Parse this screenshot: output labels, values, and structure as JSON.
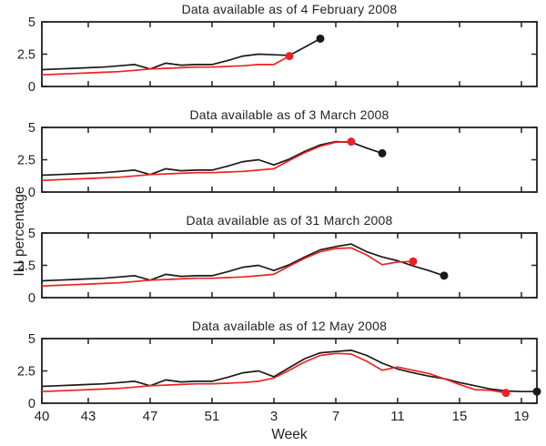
{
  "figure": {
    "ylabel": "ILI percentage",
    "xlabel": "Week",
    "colors": {
      "black_series": "#1d1819",
      "red_series": "#ed2124",
      "axis": "#231f20",
      "text": "#262223"
    },
    "ylim": [
      0,
      5
    ],
    "yticks": {
      "values": [
        0,
        2.5,
        5
      ],
      "labels": [
        "0",
        "2.5",
        "5"
      ]
    },
    "weeks": [
      "40",
      "41",
      "42",
      "43",
      "44",
      "45",
      "46",
      "47",
      "48",
      "49",
      "50",
      "51",
      "52",
      "1",
      "2",
      "3",
      "4",
      "5",
      "6",
      "7",
      "8",
      "9",
      "10",
      "11",
      "12",
      "13",
      "14",
      "15",
      "16",
      "17",
      "18",
      "19",
      "20"
    ],
    "x_ticks": {
      "indices": [
        0,
        3,
        7,
        11,
        15,
        19,
        23,
        27,
        31
      ],
      "labels": [
        "40",
        "43",
        "47",
        "51",
        "3",
        "7",
        "11",
        "15",
        "19"
      ]
    }
  },
  "chart_data": [
    {
      "type": "line",
      "title": "Data available as of 4 February 2008",
      "ylim": [
        0,
        5
      ],
      "series": [
        {
          "name": "black",
          "color": "#1d1819",
          "end_marker": true,
          "values": [
            1.3,
            1.35,
            1.4,
            1.45,
            1.5,
            1.6,
            1.7,
            1.35,
            1.8,
            1.65,
            1.7,
            1.7,
            2.0,
            2.35,
            2.5,
            2.45,
            2.4,
            3.05,
            3.7
          ]
        },
        {
          "name": "red",
          "color": "#ed2124",
          "end_marker": true,
          "values": [
            0.9,
            0.95,
            1.0,
            1.05,
            1.1,
            1.15,
            1.25,
            1.35,
            1.4,
            1.45,
            1.5,
            1.5,
            1.55,
            1.6,
            1.7,
            1.7,
            2.35
          ]
        }
      ]
    },
    {
      "type": "line",
      "title": "Data available as of 3 March 2008",
      "ylim": [
        0,
        5
      ],
      "series": [
        {
          "name": "black",
          "color": "#1d1819",
          "end_marker": true,
          "values": [
            1.3,
            1.35,
            1.4,
            1.45,
            1.5,
            1.6,
            1.7,
            1.35,
            1.8,
            1.65,
            1.7,
            1.7,
            2.0,
            2.35,
            2.5,
            2.1,
            2.55,
            3.15,
            3.65,
            3.9,
            3.85,
            3.4,
            3.0
          ]
        },
        {
          "name": "red",
          "color": "#ed2124",
          "end_marker": true,
          "values": [
            0.9,
            0.95,
            1.0,
            1.05,
            1.1,
            1.15,
            1.25,
            1.35,
            1.4,
            1.45,
            1.5,
            1.5,
            1.55,
            1.6,
            1.7,
            1.8,
            2.45,
            3.05,
            3.55,
            3.85,
            3.9
          ]
        }
      ]
    },
    {
      "type": "line",
      "title": "Data available as of 31 March 2008",
      "ylim": [
        0,
        5
      ],
      "series": [
        {
          "name": "black",
          "color": "#1d1819",
          "end_marker": true,
          "values": [
            1.3,
            1.35,
            1.4,
            1.45,
            1.5,
            1.6,
            1.7,
            1.35,
            1.8,
            1.65,
            1.7,
            1.7,
            2.0,
            2.35,
            2.5,
            2.1,
            2.55,
            3.15,
            3.7,
            3.95,
            4.15,
            3.55,
            3.15,
            2.85,
            2.45,
            2.1,
            1.7
          ]
        },
        {
          "name": "red",
          "color": "#ed2124",
          "end_marker": true,
          "values": [
            0.9,
            0.95,
            1.0,
            1.05,
            1.1,
            1.15,
            1.25,
            1.35,
            1.4,
            1.45,
            1.5,
            1.5,
            1.55,
            1.6,
            1.7,
            1.8,
            2.45,
            3.05,
            3.55,
            3.8,
            3.85,
            3.3,
            2.55,
            2.75,
            2.8
          ]
        }
      ]
    },
    {
      "type": "line",
      "title": "Data available as of 12 May 2008",
      "ylim": [
        0,
        5
      ],
      "series": [
        {
          "name": "black",
          "color": "#1d1819",
          "end_marker": true,
          "values": [
            1.3,
            1.35,
            1.4,
            1.45,
            1.5,
            1.6,
            1.7,
            1.35,
            1.8,
            1.65,
            1.7,
            1.7,
            2.0,
            2.35,
            2.5,
            2.05,
            2.75,
            3.45,
            3.9,
            4.0,
            4.1,
            3.7,
            3.1,
            2.65,
            2.35,
            2.1,
            1.9,
            1.6,
            1.35,
            1.1,
            0.95,
            0.9,
            0.9
          ]
        },
        {
          "name": "red",
          "color": "#ed2124",
          "end_marker": true,
          "values": [
            0.9,
            0.95,
            1.0,
            1.05,
            1.1,
            1.15,
            1.25,
            1.35,
            1.4,
            1.45,
            1.5,
            1.5,
            1.55,
            1.6,
            1.7,
            1.95,
            2.55,
            3.2,
            3.7,
            3.85,
            3.8,
            3.25,
            2.55,
            2.8,
            2.55,
            2.3,
            1.9,
            1.45,
            1.05,
            1.0,
            0.8
          ]
        }
      ]
    }
  ]
}
